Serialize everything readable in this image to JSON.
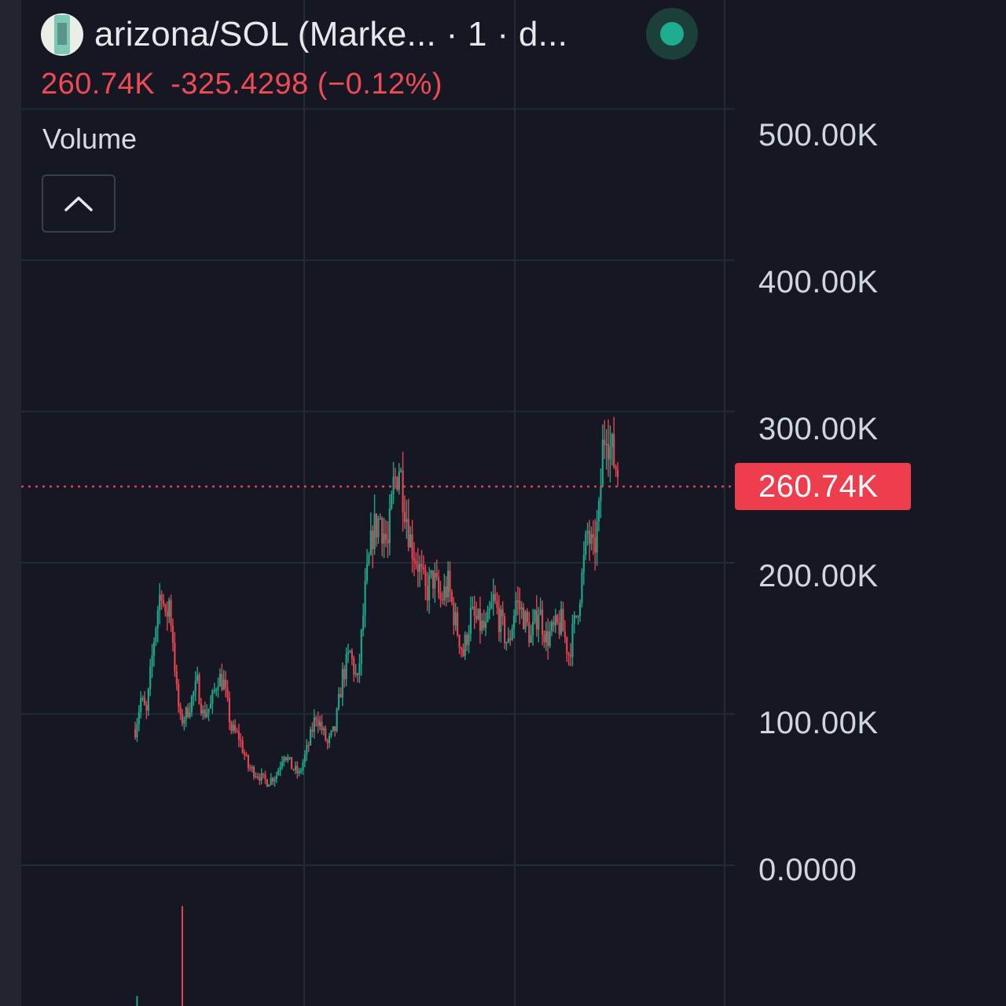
{
  "header": {
    "pair_title": "arizona/SOL (Marke... · 1 · d...",
    "logo_icon": "arizona-can-logo-icon",
    "status_icon": "live-status-dot-icon",
    "status_color": "#1eae8f"
  },
  "quote": {
    "last_price": "260.74K",
    "change": "-325.4298 (−0.12%)",
    "color": "#f04a55"
  },
  "indicators": {
    "volume_label": "Volume",
    "collapse_icon": "chevron-up-icon"
  },
  "last_price_tag": {
    "label": "260.74K",
    "color": "#ee3d4c"
  },
  "colors": {
    "background": "#151823",
    "up": "#1fa58a",
    "down": "#e8424f",
    "grid": "#262a36"
  },
  "chart_data": {
    "type": "candlestick",
    "title": "arizona/SOL (Marke... · 1 · d...",
    "y_tick_labels": [
      "500.00K",
      "400.00K",
      "300.00K",
      "200.00K",
      "100.00K",
      "0.0000"
    ],
    "y_ticks": [
      500000,
      400000,
      300000,
      200000,
      100000,
      0
    ],
    "ylim": [
      -93000,
      572000
    ],
    "y_axis_position": "right",
    "last_value": 260740,
    "grid": true,
    "price_path": [
      [
        0,
        90000
      ],
      [
        3,
        110000
      ],
      [
        6,
        100000
      ],
      [
        8,
        125000
      ],
      [
        10,
        150000
      ],
      [
        12,
        170000
      ],
      [
        14,
        185000
      ],
      [
        16,
        160000
      ],
      [
        18,
        175000
      ],
      [
        20,
        150000
      ],
      [
        22,
        115000
      ],
      [
        24,
        95000
      ],
      [
        27,
        100000
      ],
      [
        30,
        110000
      ],
      [
        33,
        120000
      ],
      [
        36,
        100000
      ],
      [
        40,
        105000
      ],
      [
        44,
        125000
      ],
      [
        47,
        120000
      ],
      [
        51,
        90000
      ],
      [
        55,
        85000
      ],
      [
        60,
        65000
      ],
      [
        65,
        60000
      ],
      [
        70,
        55000
      ],
      [
        75,
        60000
      ],
      [
        79,
        75000
      ],
      [
        83,
        65000
      ],
      [
        87,
        60000
      ],
      [
        92,
        80000
      ],
      [
        96,
        100000
      ],
      [
        99,
        90000
      ],
      [
        102,
        80000
      ],
      [
        106,
        90000
      ],
      [
        110,
        125000
      ],
      [
        114,
        140000
      ],
      [
        118,
        120000
      ],
      [
        122,
        180000
      ],
      [
        126,
        220000
      ],
      [
        130,
        230000
      ],
      [
        134,
        210000
      ],
      [
        137,
        250000
      ],
      [
        140,
        265000
      ],
      [
        143,
        240000
      ],
      [
        146,
        215000
      ],
      [
        150,
        200000
      ],
      [
        154,
        180000
      ],
      [
        158,
        190000
      ],
      [
        162,
        175000
      ],
      [
        166,
        185000
      ],
      [
        170,
        160000
      ],
      [
        174,
        140000
      ],
      [
        178,
        165000
      ],
      [
        182,
        160000
      ],
      [
        186,
        155000
      ],
      [
        190,
        175000
      ],
      [
        194,
        160000
      ],
      [
        198,
        145000
      ],
      [
        202,
        175000
      ],
      [
        206,
        165000
      ],
      [
        210,
        150000
      ],
      [
        214,
        170000
      ],
      [
        218,
        150000
      ],
      [
        222,
        155000
      ],
      [
        226,
        160000
      ],
      [
        230,
        140000
      ],
      [
        234,
        165000
      ],
      [
        237,
        190000
      ],
      [
        240,
        220000
      ],
      [
        243,
        205000
      ],
      [
        246,
        230000
      ],
      [
        248,
        275000
      ],
      [
        250,
        295000
      ],
      [
        252,
        275000
      ],
      [
        254,
        268000
      ],
      [
        256,
        260740
      ]
    ],
    "volume_bars": [
      {
        "x": 25,
        "value": 120000,
        "direction": "down"
      },
      {
        "x": 1,
        "value": 12000,
        "direction": "up"
      }
    ]
  }
}
